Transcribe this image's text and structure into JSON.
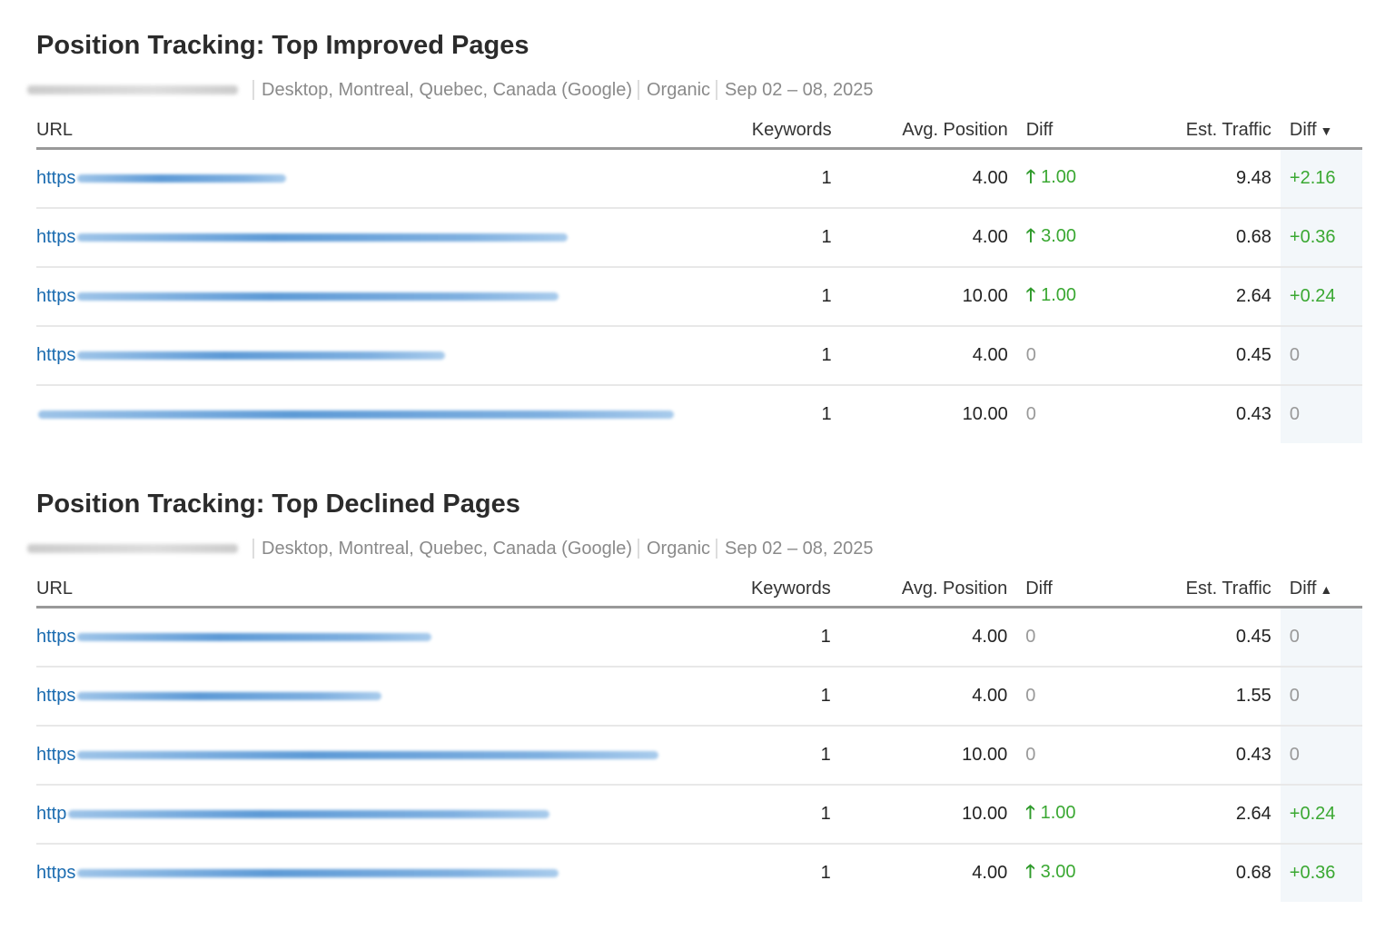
{
  "colors": {
    "link": "#1a6bb0",
    "positive": "#3aa832",
    "neutral": "#999999",
    "highlight_column": "#f3f7fa"
  },
  "sections": [
    {
      "title": "Position Tracking: Top Improved Pages",
      "subtitle": "Desktop, Montreal, Quebec, Canada (Google)",
      "type": "Organic",
      "date_range": "Sep 02 – 08, 2025",
      "columns": {
        "url": "URL",
        "keywords": "Keywords",
        "avg_position": "Avg. Position",
        "diff": "Diff",
        "est_traffic": "Est. Traffic",
        "traffic_diff": "Diff"
      },
      "sort_icon": "caret-down-icon",
      "rows": [
        {
          "url": "https",
          "keywords": "1",
          "avg_position": "4.00",
          "diff": "1.00",
          "diff_up": true,
          "est_traffic": "9.48",
          "traffic_diff": "+2.16"
        },
        {
          "url": "https",
          "keywords": "1",
          "avg_position": "4.00",
          "diff": "3.00",
          "diff_up": true,
          "est_traffic": "0.68",
          "traffic_diff": "+0.36"
        },
        {
          "url": "https",
          "keywords": "1",
          "avg_position": "10.00",
          "diff": "1.00",
          "diff_up": true,
          "est_traffic": "2.64",
          "traffic_diff": "+0.24"
        },
        {
          "url": "https",
          "keywords": "1",
          "avg_position": "4.00",
          "diff": "0",
          "diff_up": false,
          "est_traffic": "0.45",
          "traffic_diff": "0"
        },
        {
          "url": "",
          "keywords": "1",
          "avg_position": "10.00",
          "diff": "0",
          "diff_up": false,
          "est_traffic": "0.43",
          "traffic_diff": "0"
        }
      ]
    },
    {
      "title": "Position Tracking: Top Declined Pages",
      "subtitle": "Desktop, Montreal, Quebec, Canada (Google)",
      "type": "Organic",
      "date_range": "Sep 02 – 08, 2025",
      "columns": {
        "url": "URL",
        "keywords": "Keywords",
        "avg_position": "Avg. Position",
        "diff": "Diff",
        "est_traffic": "Est. Traffic",
        "traffic_diff": "Diff"
      },
      "sort_icon": "caret-up-icon",
      "rows": [
        {
          "url": "https",
          "keywords": "1",
          "avg_position": "4.00",
          "diff": "0",
          "diff_up": false,
          "est_traffic": "0.45",
          "traffic_diff": "0"
        },
        {
          "url": "https",
          "keywords": "1",
          "avg_position": "4.00",
          "diff": "0",
          "diff_up": false,
          "est_traffic": "1.55",
          "traffic_diff": "0"
        },
        {
          "url": "https",
          "keywords": "1",
          "avg_position": "10.00",
          "diff": "0",
          "diff_up": false,
          "est_traffic": "0.43",
          "traffic_diff": "0"
        },
        {
          "url": "http",
          "keywords": "1",
          "avg_position": "10.00",
          "diff": "1.00",
          "diff_up": true,
          "est_traffic": "2.64",
          "traffic_diff": "+0.24"
        },
        {
          "url": "https",
          "keywords": "1",
          "avg_position": "4.00",
          "diff": "3.00",
          "diff_up": true,
          "est_traffic": "0.68",
          "traffic_diff": "+0.36"
        }
      ]
    }
  ]
}
